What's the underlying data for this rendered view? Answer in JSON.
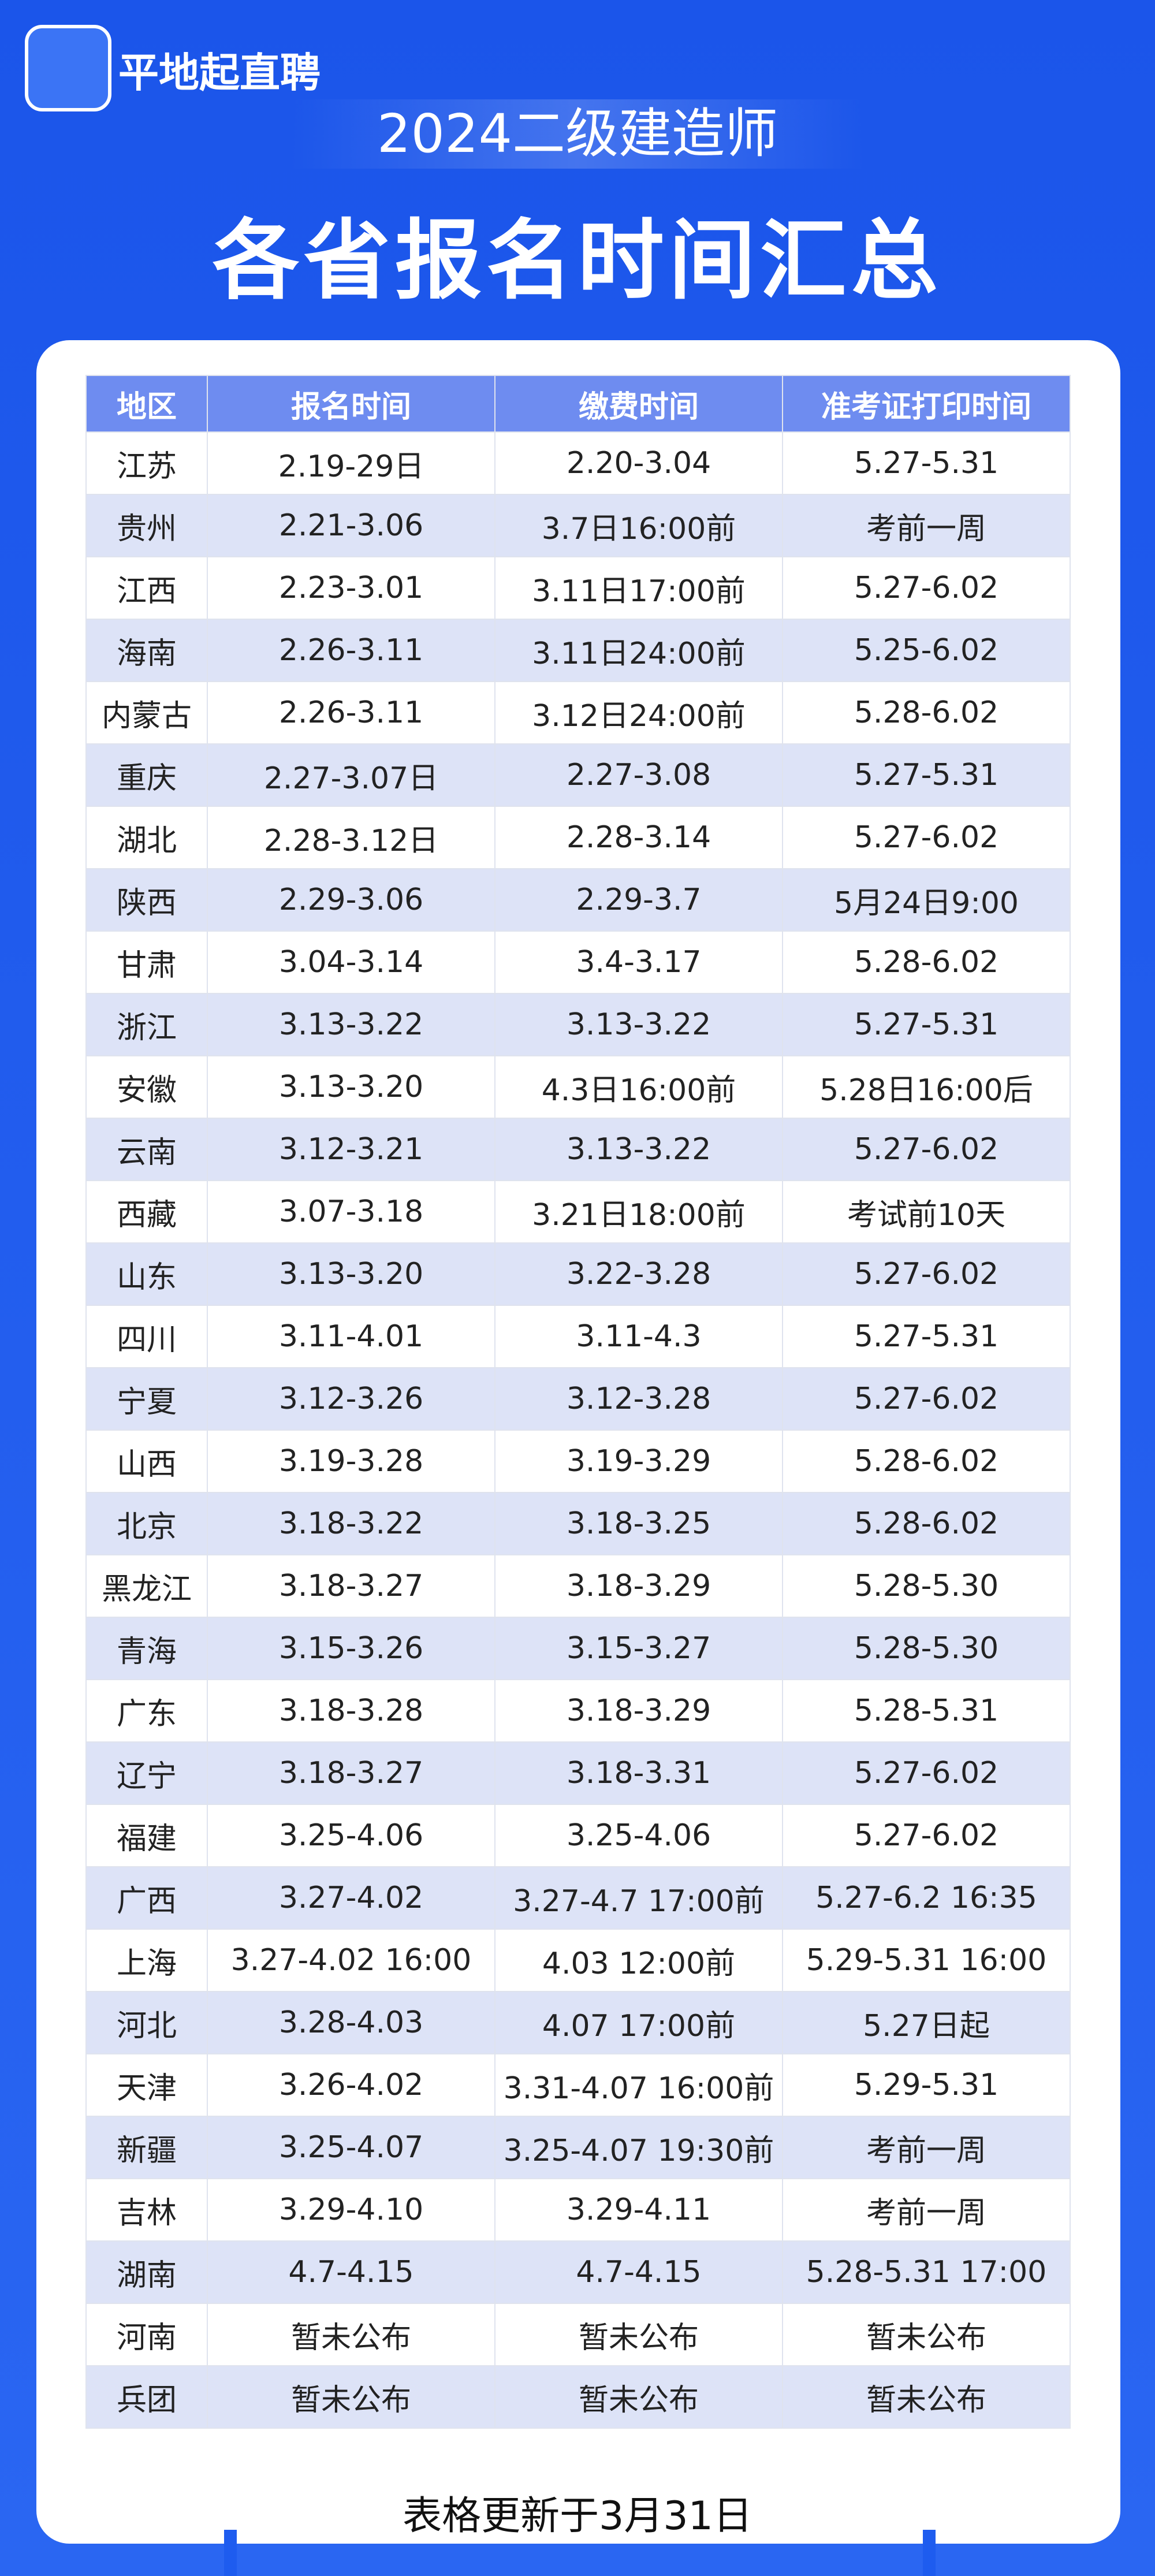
{
  "header": {
    "logo_text": "平地起直聘",
    "subtitle": "2024二级建造师",
    "title": "各省报名时间汇总"
  },
  "table": {
    "columns": [
      "地区",
      "报名时间",
      "缴费时间",
      "准考证打印时间"
    ],
    "rows": [
      [
        "江苏",
        "2.19-29日",
        "2.20-3.04",
        "5.27-5.31"
      ],
      [
        "贵州",
        "2.21-3.06",
        "3.7日16:00前",
        "考前一周"
      ],
      [
        "江西",
        "2.23-3.01",
        "3.11日17:00前",
        "5.27-6.02"
      ],
      [
        "海南",
        "2.26-3.11",
        "3.11日24:00前",
        "5.25-6.02"
      ],
      [
        "内蒙古",
        "2.26-3.11",
        "3.12日24:00前",
        "5.28-6.02"
      ],
      [
        "重庆",
        "2.27-3.07日",
        "2.27-3.08",
        "5.27-5.31"
      ],
      [
        "湖北",
        "2.28-3.12日",
        "2.28-3.14",
        "5.27-6.02"
      ],
      [
        "陕西",
        "2.29-3.06",
        "2.29-3.7",
        "5月24日9:00"
      ],
      [
        "甘肃",
        "3.04-3.14",
        "3.4-3.17",
        "5.28-6.02"
      ],
      [
        "浙江",
        "3.13-3.22",
        "3.13-3.22",
        "5.27-5.31"
      ],
      [
        "安徽",
        "3.13-3.20",
        "4.3日16:00前",
        "5.28日16:00后"
      ],
      [
        "云南",
        "3.12-3.21",
        "3.13-3.22",
        "5.27-6.02"
      ],
      [
        "西藏",
        "3.07-3.18",
        "3.21日18:00前",
        "考试前10天"
      ],
      [
        "山东",
        "3.13-3.20",
        "3.22-3.28",
        "5.27-6.02"
      ],
      [
        "四川",
        "3.11-4.01",
        "3.11-4.3",
        "5.27-5.31"
      ],
      [
        "宁夏",
        "3.12-3.26",
        "3.12-3.28",
        "5.27-6.02"
      ],
      [
        "山西",
        "3.19-3.28",
        "3.19-3.29",
        "5.28-6.02"
      ],
      [
        "北京",
        "3.18-3.22",
        "3.18-3.25",
        "5.28-6.02"
      ],
      [
        "黑龙江",
        "3.18-3.27",
        "3.18-3.29",
        "5.28-5.30"
      ],
      [
        "青海",
        "3.15-3.26",
        "3.15-3.27",
        "5.28-5.30"
      ],
      [
        "广东",
        "3.18-3.28",
        "3.18-3.29",
        "5.28-5.31"
      ],
      [
        "辽宁",
        "3.18-3.27",
        "3.18-3.31",
        "5.27-6.02"
      ],
      [
        "福建",
        "3.25-4.06",
        "3.25-4.06",
        "5.27-6.02"
      ],
      [
        "广西",
        "3.27-4.02",
        "3.27-4.7 17:00前",
        "5.27-6.2 16:35"
      ],
      [
        "上海",
        "3.27-4.02 16:00",
        "4.03 12:00前",
        "5.29-5.31 16:00"
      ],
      [
        "河北",
        "3.28-4.03",
        "4.07 17:00前",
        "5.27日起"
      ],
      [
        "天津",
        "3.26-4.02",
        "3.31-4.07 16:00前",
        "5.29-5.31"
      ],
      [
        "新疆",
        "3.25-4.07",
        "3.25-4.07 19:30前",
        "考前一周"
      ],
      [
        "吉林",
        "3.29-4.10",
        "3.29-4.11",
        "考前一周"
      ],
      [
        "湖南",
        "4.7-4.15",
        "4.7-4.15",
        "5.28-5.31 17:00"
      ],
      [
        "河南",
        "暂未公布",
        "暂未公布",
        "暂未公布"
      ],
      [
        "兵团",
        "暂未公布",
        "暂未公布",
        "暂未公布"
      ]
    ]
  },
  "footer": "表格更新于3月31日"
}
